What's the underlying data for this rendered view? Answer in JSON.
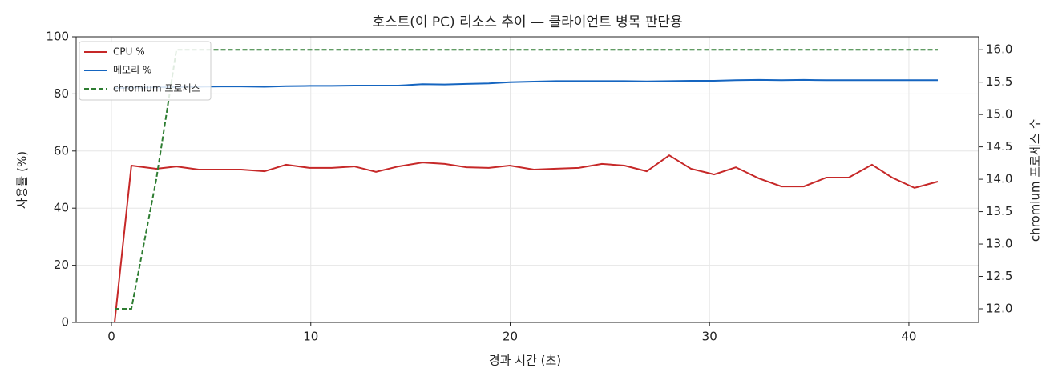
{
  "chart_data": {
    "type": "line",
    "title": "호스트(이 PC) 리소스 추이 — 클라이언트 병목 판단용",
    "x_label": "경과 시간 (초)",
    "y_label": "사용률 (%)",
    "y2_label": "chromium 프로세스 수",
    "x": [
      0.16,
      1.0,
      2.25,
      3.26,
      4.38,
      5.47,
      6.51,
      7.68,
      8.76,
      9.93,
      11.05,
      12.18,
      13.27,
      14.39,
      15.6,
      16.72,
      17.81,
      18.93,
      19.98,
      21.19,
      22.31,
      23.44,
      24.6,
      25.73,
      26.85,
      27.98,
      29.07,
      30.23,
      31.32,
      32.48,
      33.61,
      34.73,
      35.86,
      36.98,
      38.15,
      39.16,
      40.28,
      41.45
    ],
    "series": [
      {
        "name": "CPU %",
        "color": "#c62828",
        "linestyle": "solid",
        "values": [
          0,
          54.9,
          53.8,
          54.6,
          53.5,
          53.5,
          53.5,
          52.9,
          55.2,
          54.1,
          54.1,
          54.6,
          52.7,
          54.6,
          56.0,
          55.5,
          54.3,
          54.1,
          54.9,
          53.5,
          53.8,
          54.1,
          55.5,
          54.9,
          52.9,
          58.5,
          53.8,
          51.8,
          54.3,
          50.4,
          47.6,
          47.6,
          50.7,
          50.7,
          55.2,
          50.7,
          47.1,
          49.3
        ]
      },
      {
        "name": "메모리 %",
        "color": "#1565c0",
        "linestyle": "solid",
        "values": [
          82.0,
          82.2,
          82.3,
          82.4,
          82.5,
          82.6,
          82.6,
          82.5,
          82.7,
          82.8,
          82.8,
          82.9,
          82.9,
          82.9,
          83.4,
          83.3,
          83.5,
          83.7,
          84.1,
          84.3,
          84.5,
          84.5,
          84.5,
          84.5,
          84.4,
          84.5,
          84.6,
          84.6,
          84.8,
          84.9,
          84.8,
          84.9,
          84.8,
          84.8,
          84.8,
          84.8,
          84.8,
          84.8
        ]
      },
      {
        "name": "chromium 프로세스",
        "color": "#2e7d32",
        "linestyle": "dashed",
        "axis": "y2",
        "values": [
          12,
          12,
          14,
          16,
          16,
          16,
          16,
          16,
          16,
          16,
          16,
          16,
          16,
          16,
          16,
          16,
          16,
          16,
          16,
          16,
          16,
          16,
          16,
          16,
          16,
          16,
          16,
          16,
          16,
          16,
          16,
          16,
          16,
          16,
          16,
          16,
          16,
          16
        ]
      }
    ],
    "xlim": [
      -1.77,
      43.5
    ],
    "xticks": [
      0,
      10,
      20,
      30,
      40
    ],
    "ylim": [
      0,
      100
    ],
    "yticks": [
      0,
      20,
      40,
      60,
      80,
      100
    ],
    "y2lim": [
      11.79,
      16.2
    ],
    "y2ticks": [
      {
        "value": 12,
        "label": "12.0"
      },
      {
        "value": 12.5,
        "label": "12.5"
      },
      {
        "value": 13,
        "label": "13.0"
      },
      {
        "value": 13.5,
        "label": "13.5"
      },
      {
        "value": 14,
        "label": "14.0"
      },
      {
        "value": 14.5,
        "label": "14.5"
      },
      {
        "value": 15,
        "label": "15.0"
      },
      {
        "value": 15.5,
        "label": "15.5"
      },
      {
        "value": 16,
        "label": "16.0"
      }
    ],
    "grid": true,
    "legend": "upper-left"
  }
}
